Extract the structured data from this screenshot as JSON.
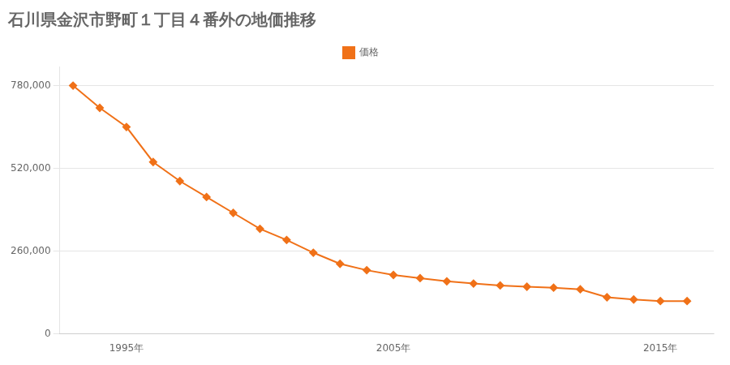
{
  "chart_data": {
    "type": "line",
    "title": "石川県金沢市野町１丁目４番外の地価推移",
    "x": [
      1993,
      1994,
      1995,
      1996,
      1997,
      1998,
      1999,
      2000,
      2001,
      2002,
      2003,
      2004,
      2005,
      2006,
      2007,
      2008,
      2009,
      2010,
      2011,
      2012,
      2013,
      2014,
      2015,
      2016
    ],
    "series": [
      {
        "name": "価格",
        "color": "#f07118",
        "marker": "diamond",
        "values": [
          780000,
          710000,
          650000,
          540000,
          480000,
          430000,
          380000,
          330000,
          295000,
          255000,
          220000,
          200000,
          185000,
          175000,
          165000,
          158000,
          152000,
          148000,
          145000,
          140000,
          115000,
          108000,
          103000,
          103000
        ]
      }
    ],
    "xlim": [
      1992.5,
      2017
    ],
    "xticks": [
      {
        "value": 1995,
        "label": "1995年"
      },
      {
        "value": 2005,
        "label": "2005年"
      },
      {
        "value": 2015,
        "label": "2015年"
      }
    ],
    "ylim": [
      0,
      840000
    ],
    "yticks": [
      0,
      {
        "value": 260000,
        "label": "260,000"
      },
      {
        "value": 520000,
        "label": "520,000"
      },
      {
        "value": 780000,
        "label": "780,000"
      }
    ],
    "grid": "y",
    "legend": "top"
  }
}
